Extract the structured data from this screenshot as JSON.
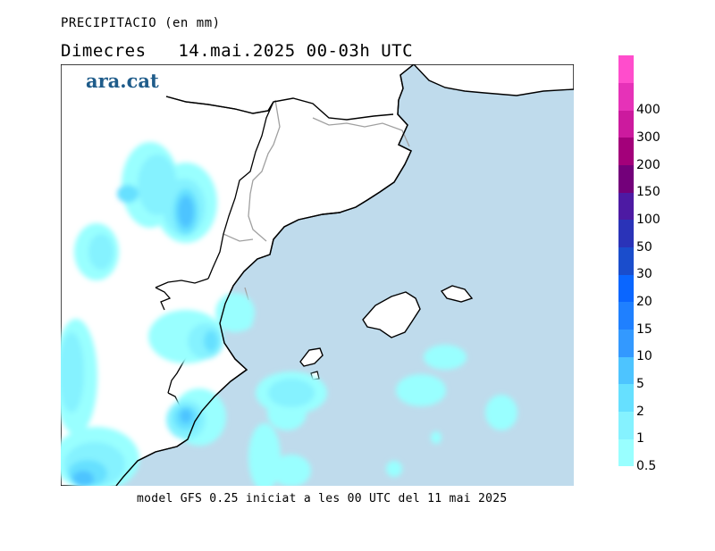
{
  "header": {
    "variable": "PRECIPITACIO (en mm)",
    "day": "Dimecres",
    "date": "14.mai.2025",
    "time_range": "00-03h UTC"
  },
  "logo": {
    "text": "ara.cat"
  },
  "footer": {
    "text": "model GFS 0.25 iniciat a les 00 UTC del 11 mai 2025"
  },
  "legend": {
    "levels": [
      {
        "label": "0.5",
        "color": "#99ffff"
      },
      {
        "label": "1",
        "color": "#85f2ff"
      },
      {
        "label": "2",
        "color": "#66e0ff"
      },
      {
        "label": "5",
        "color": "#4dc4ff"
      },
      {
        "label": "10",
        "color": "#3399ff"
      },
      {
        "label": "15",
        "color": "#1f80ff"
      },
      {
        "label": "20",
        "color": "#0a66ff"
      },
      {
        "label": "30",
        "color": "#1a4dcc"
      },
      {
        "label": "50",
        "color": "#2a33b8"
      },
      {
        "label": "100",
        "color": "#4d1aa3"
      },
      {
        "label": "150",
        "color": "#73007a"
      },
      {
        "label": "200",
        "color": "#a3007a"
      },
      {
        "label": "300",
        "color": "#cc1a9e"
      },
      {
        "label": "400",
        "color": "#e632b8"
      },
      {
        "label": "",
        "color": "#ff4dcc"
      }
    ]
  },
  "colors": {
    "sea": "#bfdbec",
    "land": "#ffffff",
    "coast": "#000000",
    "border": "#a0a0a0"
  }
}
